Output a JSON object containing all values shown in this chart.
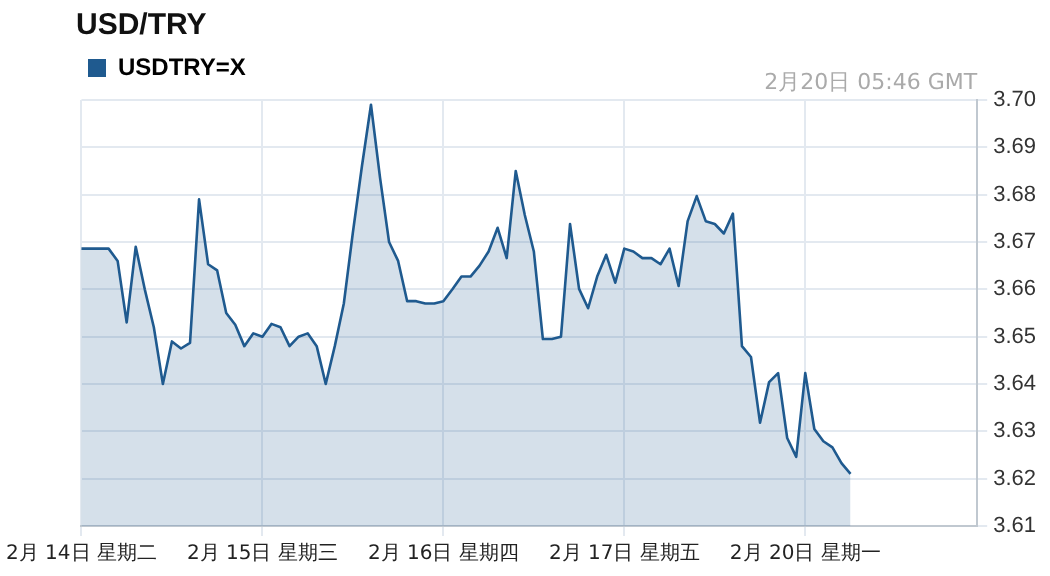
{
  "chart_data": {
    "type": "area",
    "title": "USD/TRY",
    "annotations": [
      "2月20日 05:46 GMT"
    ],
    "categories": [
      "2月 14日 星期二",
      null,
      null,
      null,
      null,
      null,
      null,
      null,
      null,
      null,
      null,
      null,
      null,
      null,
      null,
      null,
      null,
      null,
      null,
      null,
      "2月 15日 星期三",
      null,
      null,
      null,
      null,
      null,
      null,
      null,
      null,
      null,
      null,
      null,
      null,
      null,
      null,
      null,
      null,
      null,
      null,
      null,
      "2月 16日 星期四",
      null,
      null,
      null,
      null,
      null,
      null,
      null,
      null,
      null,
      null,
      null,
      null,
      null,
      null,
      null,
      null,
      null,
      null,
      null,
      "2月 17日 星期五",
      null,
      null,
      null,
      null,
      null,
      null,
      null,
      null,
      null,
      null,
      null,
      null,
      null,
      null,
      null,
      null,
      null,
      null,
      null,
      "2月 20日 星期一",
      null,
      null,
      null,
      null,
      null,
      null,
      null,
      null,
      null,
      null,
      null,
      null,
      null,
      null,
      null,
      null,
      null,
      null,
      null
    ],
    "series": [
      {
        "name": "USDTRY=X",
        "color": "#1f5a8f",
        "values": [
          3.6686,
          3.6686,
          3.6686,
          3.6686,
          3.666,
          3.653,
          3.669,
          3.66,
          3.652,
          3.64,
          3.649,
          3.6475,
          3.6487,
          3.679,
          3.6653,
          3.664,
          3.655,
          3.6525,
          3.648,
          3.6507,
          3.65,
          3.6527,
          3.652,
          3.648,
          3.65,
          3.6507,
          3.648,
          3.64,
          3.648,
          3.657,
          3.672,
          3.686,
          3.699,
          3.6836,
          3.67,
          3.666,
          3.6575,
          3.6575,
          3.657,
          3.657,
          3.6575,
          3.66,
          3.6627,
          3.6627,
          3.665,
          3.668,
          3.673,
          3.6666,
          3.685,
          3.6757,
          3.668,
          3.6495,
          3.6495,
          3.65,
          3.6738,
          3.6601,
          3.656,
          3.6627,
          3.6673,
          3.6614,
          3.6686,
          3.668,
          3.6666,
          3.6666,
          3.6653,
          3.6686,
          3.6607,
          3.6744,
          3.6797,
          3.6744,
          3.6738,
          3.6718,
          3.676,
          3.648,
          3.6457,
          3.6318,
          3.6404,
          3.6423,
          3.6286,
          3.6246,
          3.6423,
          3.6305,
          3.6279,
          3.6266,
          3.6233,
          3.621,
          null,
          null,
          null,
          null,
          null,
          null,
          null,
          null,
          null,
          null,
          null,
          null,
          null,
          null
        ]
      }
    ],
    "ylim": [
      3.61,
      3.7
    ],
    "yticks": [
      {
        "value": 3.61,
        "label": "3.61"
      },
      {
        "value": 3.62,
        "label": "3.62"
      },
      {
        "value": 3.63,
        "label": "3.63"
      },
      {
        "value": 3.64,
        "label": "3.64"
      },
      {
        "value": 3.65,
        "label": "3.65"
      },
      {
        "value": 3.66,
        "label": "3.66"
      },
      {
        "value": 3.67,
        "label": "3.67"
      },
      {
        "value": 3.68,
        "label": "3.68"
      },
      {
        "value": 3.69,
        "label": "3.69"
      },
      {
        "value": 3.7,
        "label": "3.70"
      }
    ],
    "grid": true,
    "legend": "top left",
    "marker": "none",
    "line_style": "solid"
  }
}
